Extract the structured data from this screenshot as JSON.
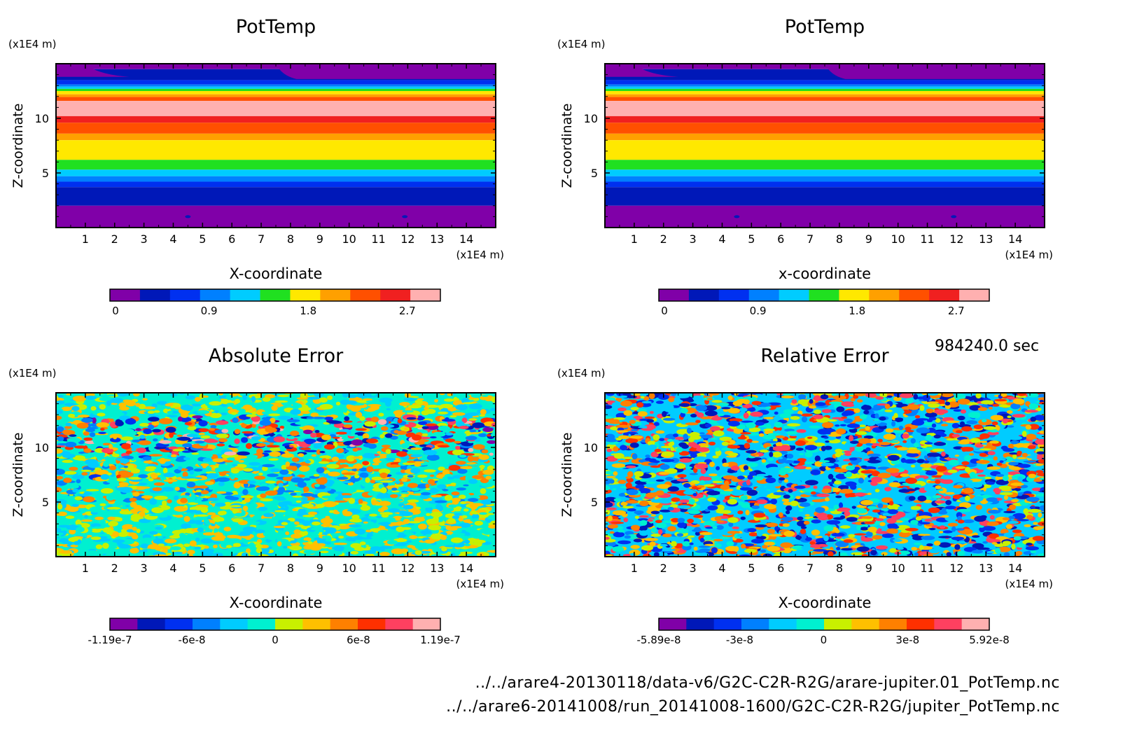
{
  "time_label": "984240.0 sec",
  "files": [
    "../../arare4-20130118/data-v6/G2C-C2R-R2G/arare-jupiter.01_PotTemp.nc",
    "../../arare6-20141008/run_20141008-1600/G2C-C2R-R2G/jupiter_PotTemp.nc"
  ],
  "chart_data": [
    {
      "type": "heatmap",
      "title": "PotTemp",
      "xlabel": "X-coordinate",
      "ylabel": "Z-coordinate",
      "x_unit": "(x1E4 m)",
      "y_unit": "(x1E4 m)",
      "xlim": [
        0,
        15
      ],
      "ylim": [
        0,
        15
      ],
      "x_ticks": [
        "1",
        "2",
        "3",
        "4",
        "5",
        "6",
        "7",
        "8",
        "9",
        "10",
        "11",
        "12",
        "13",
        "14"
      ],
      "y_ticks": [
        "5",
        "10"
      ],
      "pattern": "horizontal-bands",
      "colorbar": {
        "labels": [
          "0",
          "0.9",
          "1.8",
          "2.7"
        ],
        "levels": [
          0,
          0.9,
          1.8,
          2.7
        ],
        "range": [
          0,
          3.0
        ],
        "colors": [
          "#8000a8",
          "#0018b8",
          "#0030f0",
          "#0080ff",
          "#00ccff",
          "#20e020",
          "#ffe800",
          "#ffa000",
          "#ff5000",
          "#f02020",
          "#ffb0b0"
        ]
      }
    },
    {
      "type": "heatmap",
      "title": "PotTemp",
      "xlabel": "x-coordinate",
      "ylabel": "Z-coordinate",
      "x_unit": "(x1E4 m)",
      "y_unit": "(x1E4 m)",
      "xlim": [
        0,
        15
      ],
      "ylim": [
        0,
        15
      ],
      "x_ticks": [
        "1",
        "2",
        "3",
        "4",
        "5",
        "6",
        "7",
        "8",
        "9",
        "10",
        "11",
        "12",
        "13",
        "14"
      ],
      "y_ticks": [
        "5",
        "10"
      ],
      "pattern": "horizontal-bands",
      "colorbar": {
        "labels": [
          "0",
          "0.9",
          "1.8",
          "2.7"
        ],
        "levels": [
          0,
          0.9,
          1.8,
          2.7
        ],
        "range": [
          0,
          3.0
        ],
        "colors": [
          "#8000a8",
          "#0018b8",
          "#0030f0",
          "#0080ff",
          "#00ccff",
          "#20e020",
          "#ffe800",
          "#ffa000",
          "#ff5000",
          "#f02020",
          "#ffb0b0"
        ]
      }
    },
    {
      "type": "heatmap",
      "title": "Absolute Error",
      "xlabel": "X-coordinate",
      "ylabel": "Z-coordinate",
      "x_unit": "(x1E4 m)",
      "y_unit": "(x1E4 m)",
      "xlim": [
        0,
        15
      ],
      "ylim": [
        0,
        15
      ],
      "x_ticks": [
        "1",
        "2",
        "3",
        "4",
        "5",
        "6",
        "7",
        "8",
        "9",
        "10",
        "11",
        "12",
        "13",
        "14"
      ],
      "y_ticks": [
        "5",
        "10"
      ],
      "pattern": "noise-centered",
      "colorbar": {
        "labels": [
          "-1.19e-7",
          "-6e-8",
          "0",
          "6e-8",
          "1.19e-7"
        ],
        "levels": [
          -1.19e-07,
          -6e-08,
          0,
          6e-08,
          1.19e-07
        ],
        "range": [
          -1.19e-07,
          1.19e-07
        ],
        "colors": [
          "#8000a8",
          "#0018b8",
          "#0030f0",
          "#0080ff",
          "#00ccff",
          "#00f0d0",
          "#c8f000",
          "#ffc000",
          "#ff8000",
          "#ff3000",
          "#ff4060",
          "#ffb0b0"
        ]
      }
    },
    {
      "type": "heatmap",
      "title": "Relative Error",
      "xlabel": "X-coordinate",
      "ylabel": "Z-coordinate",
      "x_unit": "(x1E4 m)",
      "y_unit": "(x1E4 m)",
      "xlim": [
        0,
        15
      ],
      "ylim": [
        0,
        15
      ],
      "x_ticks": [
        "1",
        "2",
        "3",
        "4",
        "5",
        "6",
        "7",
        "8",
        "9",
        "10",
        "11",
        "12",
        "13",
        "14"
      ],
      "y_ticks": [
        "5",
        "10"
      ],
      "pattern": "noise-wide",
      "colorbar": {
        "labels": [
          "-5.89e-8",
          "-3e-8",
          "0",
          "3e-8",
          "5.92e-8"
        ],
        "levels": [
          -5.89e-08,
          -3e-08,
          0,
          3e-08,
          5.92e-08
        ],
        "range": [
          -5.89e-08,
          5.92e-08
        ],
        "colors": [
          "#8000a8",
          "#0018b8",
          "#0030f0",
          "#0080ff",
          "#00ccff",
          "#00f0d0",
          "#c8f000",
          "#ffc000",
          "#ff8000",
          "#ff3000",
          "#ff4060",
          "#ffb0b0"
        ]
      }
    }
  ]
}
